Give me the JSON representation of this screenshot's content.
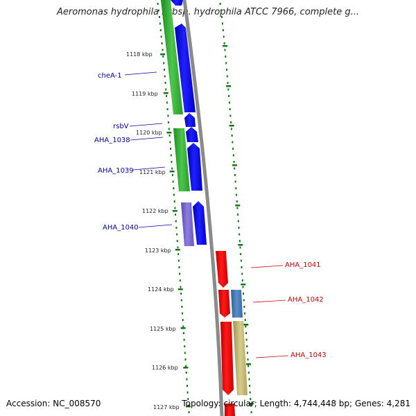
{
  "title": "Aeromonas hydrophila subsp. hydrophila ATCC 7966, complete g...",
  "accession": "Accession: NC_008570",
  "topology": "Topology: circular; Length: 4,744,448 bp; Genes: 4,281",
  "ticks": [
    "1118 kbp",
    "1119 kbp",
    "1120 kbp",
    "1121 kbp",
    "1122 kbp",
    "1123 kbp",
    "1124 kbp",
    "1125 kbp",
    "1126 kbp",
    "1127 kbp"
  ],
  "genes_left": [
    {
      "label": "cheA-1",
      "color": "#0000aa"
    },
    {
      "label": "rsbV",
      "color": "#0000aa"
    },
    {
      "label": "AHA_1038",
      "color": "#0000aa"
    },
    {
      "label": "AHA_1039",
      "color": "#0000aa"
    },
    {
      "label": "AHA_1040",
      "color": "#0000aa"
    }
  ],
  "genes_right": [
    {
      "label": "AHA_1041",
      "color": "#cc0000"
    },
    {
      "label": "AHA_1042",
      "color": "#cc0000"
    },
    {
      "label": "AHA_1043",
      "color": "#cc0000"
    }
  ],
  "colors": {
    "forward_cds": "#0000ee",
    "reverse_cds": "#ee0000",
    "rna_green": "#33aa33",
    "purple": "#7766cc",
    "steelblue": "#4477aa",
    "khaki": "#bbb06a",
    "backbone": "#888888",
    "tick": "#117711"
  }
}
